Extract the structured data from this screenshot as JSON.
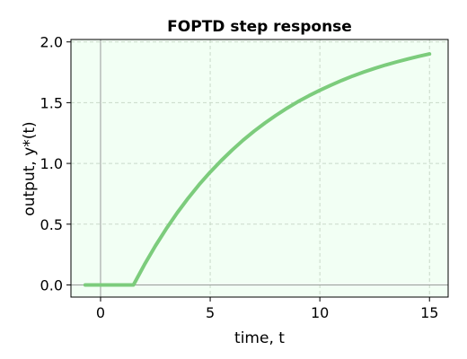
{
  "chart_data": {
    "type": "line",
    "title": "FOPTD step response",
    "xlabel": "time, t",
    "ylabel": "output, y*(t)",
    "xlim": [
      -1.35,
      15.85
    ],
    "ylim": [
      -0.1,
      2.02
    ],
    "xticks": [
      0,
      5,
      10,
      15
    ],
    "xtick_labels": [
      "0",
      "5",
      "10",
      "15"
    ],
    "yticks": [
      0.0,
      0.5,
      1.0,
      1.5,
      2.0
    ],
    "ytick_labels": [
      "0.0",
      "0.5",
      "1.0",
      "1.5",
      "2.0"
    ],
    "grid": true,
    "series": [
      {
        "x": [
          -0.7,
          0.0,
          0.5,
          1.0,
          1.5,
          2.0,
          2.5,
          3.0,
          3.5,
          4.0,
          4.5,
          5.0,
          5.5,
          6.0,
          6.5,
          7.0,
          7.5,
          8.0,
          8.5,
          9.0,
          9.5,
          10.0,
          10.5,
          11.0,
          11.5,
          12.0,
          12.5,
          13.0,
          13.5,
          14.0,
          14.5,
          15.0
        ],
        "values": [
          0.0,
          0.0,
          0.0,
          0.0,
          0.0,
          0.167,
          0.321,
          0.463,
          0.594,
          0.715,
          0.826,
          0.929,
          1.023,
          1.11,
          1.191,
          1.265,
          1.333,
          1.396,
          1.454,
          1.508,
          1.557,
          1.602,
          1.644,
          1.683,
          1.719,
          1.752,
          1.782,
          1.81,
          1.835,
          1.859,
          1.881,
          1.901
        ]
      }
    ],
    "colors": {
      "line": "#7ccc7c",
      "plot_bg": "#f2fff4",
      "grid": "#c9d9c9",
      "zero_line": "#9a9a9a"
    }
  }
}
